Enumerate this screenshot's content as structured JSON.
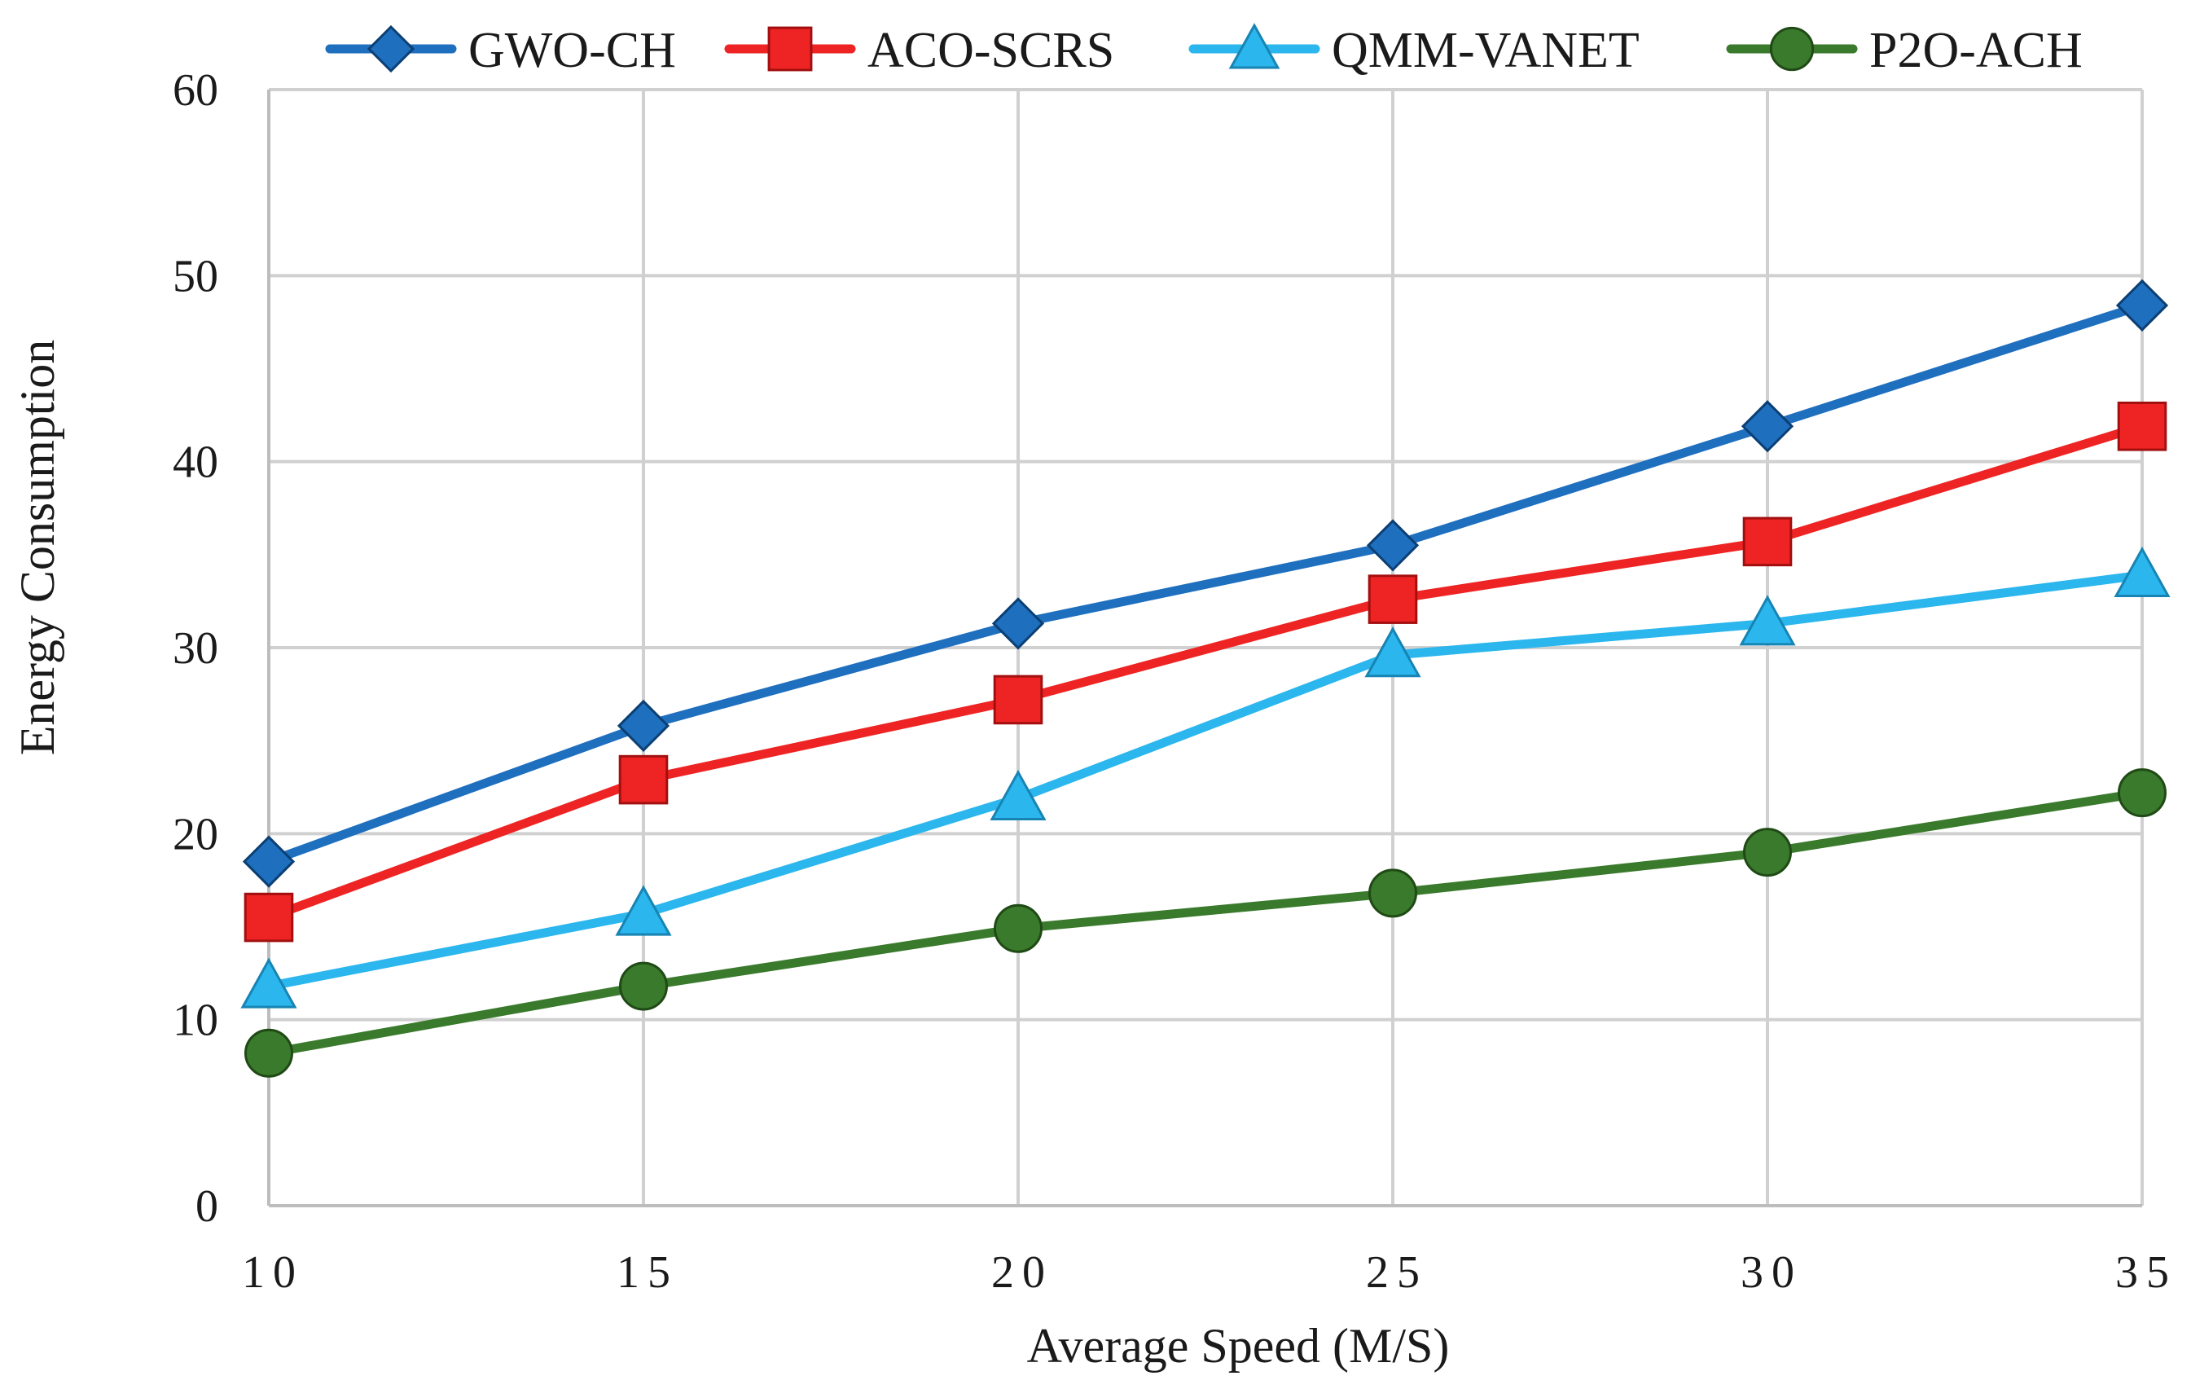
{
  "chart_data": {
    "type": "line",
    "title": "",
    "xlabel": "Average Speed (M/S)",
    "ylabel": "Energy Consumption",
    "x": [
      10,
      15,
      20,
      25,
      30,
      35
    ],
    "x_tick_labels": [
      "10",
      "15",
      "20",
      "25",
      "30",
      "35"
    ],
    "ylim": [
      0,
      60
    ],
    "y_ticks": [
      0,
      10,
      20,
      30,
      40,
      50,
      60
    ],
    "y_tick_labels": [
      "0",
      "10",
      "20",
      "30",
      "40",
      "50",
      "60"
    ],
    "grid": true,
    "legend_position": "top",
    "series": [
      {
        "name": "GWO-CH",
        "color": "#1f6fbf",
        "marker": "diamond",
        "values": [
          18.5,
          25.8,
          31.3,
          35.5,
          41.9,
          48.4
        ]
      },
      {
        "name": "ACO-SCRS",
        "color": "#ee2424",
        "marker": "square",
        "values": [
          15.5,
          22.9,
          27.2,
          32.6,
          35.7,
          41.9
        ]
      },
      {
        "name": "QMM-VANET",
        "color": "#2bb6ee",
        "marker": "triangle",
        "values": [
          11.8,
          15.7,
          21.9,
          29.6,
          31.3,
          33.9
        ]
      },
      {
        "name": "P2O-ACH",
        "color": "#3a7a2c",
        "marker": "circle",
        "values": [
          8.2,
          11.8,
          14.9,
          16.8,
          19.0,
          22.2
        ]
      }
    ]
  }
}
